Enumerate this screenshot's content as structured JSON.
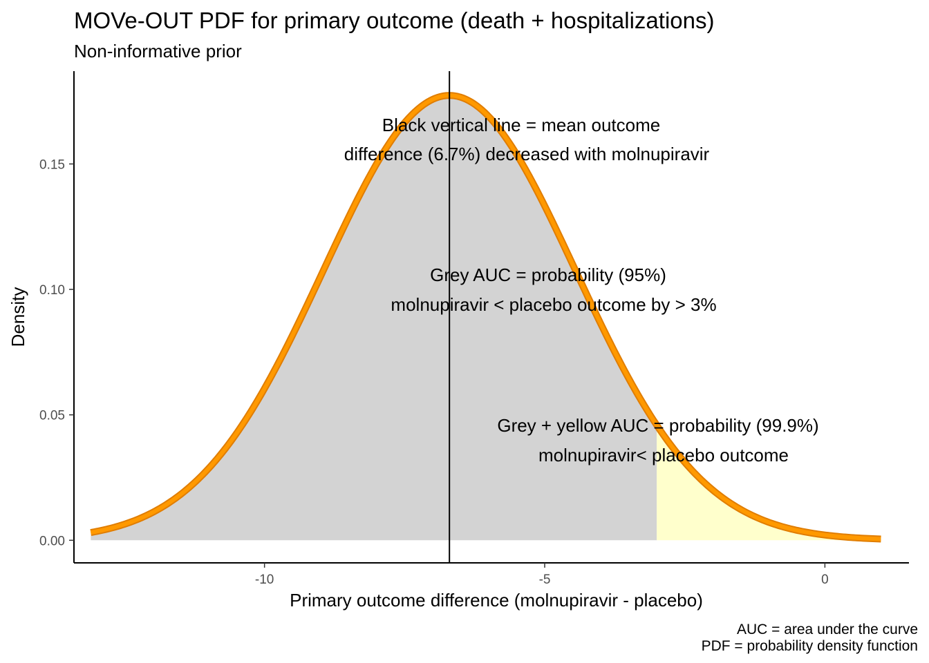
{
  "chart_data": {
    "type": "area",
    "title": "MOVe-OUT PDF for primary outcome (death + hospitalizations)",
    "subtitle": "Non-informative prior",
    "xlabel": "Primary outcome difference  (molnupiravir - placebo)",
    "ylabel": "Density",
    "xlim": [
      -13.4,
      1.5
    ],
    "ylim": [
      -0.009,
      0.187
    ],
    "x_ticks": [
      -10,
      -5,
      0
    ],
    "x_tick_labels": [
      "-10",
      "-5",
      "0"
    ],
    "y_ticks": [
      0.0,
      0.05,
      0.1,
      0.15
    ],
    "y_tick_labels": [
      "0.00",
      "0.05",
      "0.10",
      "0.15"
    ],
    "distribution": {
      "kind": "normal",
      "mean": -6.7,
      "sd": 2.25,
      "x_range": [
        -13.1,
        1.0
      ]
    },
    "mean_line_x": -6.7,
    "shaded_regions": [
      {
        "name": "grey",
        "x_from": -13.1,
        "x_to": -3.0,
        "color": "#d3d3d3"
      },
      {
        "name": "yellow",
        "x_from": -3.0,
        "x_to": 1.0,
        "color": "#ffffcc"
      }
    ],
    "curve_color": "#ff9900",
    "grid": false,
    "annotations": [
      {
        "lines": [
          "Black vertical line = mean outcome",
          "difference (6.7%) decreased with molnupiravir"
        ]
      },
      {
        "lines": [
          "Grey AUC = probability (95%)",
          "molnupiravir < placebo outcome by > 3%"
        ]
      },
      {
        "lines": [
          "Grey + yellow AUC = probability (99.9%)",
          "molnupiravir< placebo outcome"
        ]
      }
    ],
    "caption": [
      "AUC = area under the curve",
      "PDF = probability density function"
    ]
  }
}
